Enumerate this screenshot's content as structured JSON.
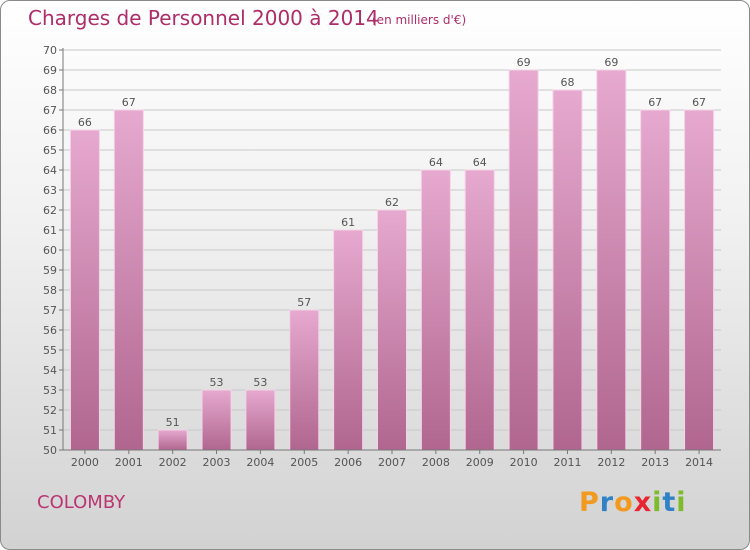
{
  "header": {
    "title": "Charges de Personnel 2000 à 2014",
    "subtitle": "(en milliers d'€)"
  },
  "footer": {
    "town": "COLOMBY",
    "logo_text": "Proxiti"
  },
  "colors": {
    "title": "#ad2d69",
    "bar_top": "#e6a9cf",
    "bar_bottom": "#b0668f",
    "logo": [
      "#f29a20",
      "#2f82c5",
      "#f29a20",
      "#e8262f",
      "#7dbb2b",
      "#2f82c5",
      "#7dbb2b"
    ]
  },
  "chart_data": {
    "type": "bar",
    "title": "Charges de Personnel 2000 à 2014",
    "subtitle": "(en milliers d'€)",
    "categories": [
      "2000",
      "2001",
      "2002",
      "2003",
      "2004",
      "2005",
      "2006",
      "2007",
      "2008",
      "2009",
      "2010",
      "2011",
      "2012",
      "2013",
      "2014"
    ],
    "values": [
      66,
      67,
      51,
      53,
      53,
      57,
      61,
      62,
      64,
      64,
      69,
      68,
      69,
      67,
      67
    ],
    "ylim": [
      50,
      70
    ],
    "yticks": [
      50,
      51,
      52,
      53,
      54,
      55,
      56,
      57,
      58,
      59,
      60,
      61,
      62,
      63,
      64,
      65,
      66,
      67,
      68,
      69,
      70
    ],
    "grid": true,
    "data_labels": true
  }
}
